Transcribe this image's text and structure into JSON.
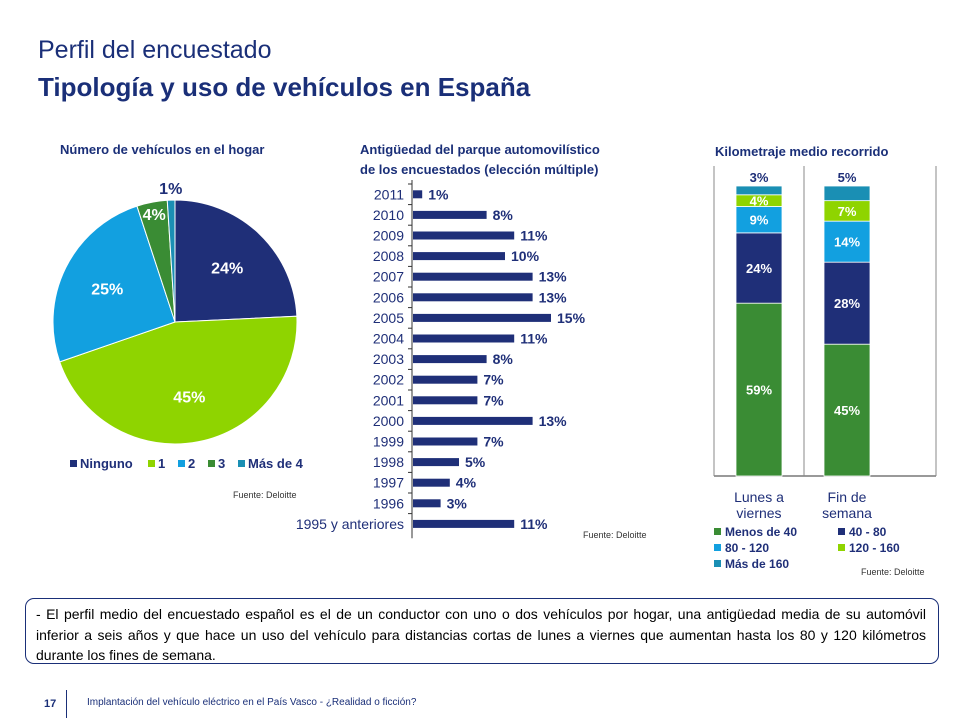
{
  "slide": {
    "title_line1": "Perfil del encuestado",
    "title_line2": "Tipología y uso de vehículos en España",
    "summary": "- El perfil medio del encuestado español es el de un conductor con uno o dos vehículos por hogar, una antigüedad media de su automóvil inferior a seis años y que hace un uso del vehículo para distancias cortas de lunes a viernes que aumentan hasta los 80 y 120 kilómetros durante los fines de semana.",
    "page_number": "17",
    "footer_text": "Implantación del vehículo eléctrico en el País Vasco - ¿Realidad o ficción?"
  },
  "chart_data": [
    {
      "type": "pie",
      "title": "Número de vehículos en el hogar",
      "source": "Fuente: Deloitte",
      "labels": [
        "Ninguno",
        "1",
        "2",
        "3",
        "Más de 4"
      ],
      "values": [
        24,
        45,
        25,
        4,
        1
      ],
      "value_labels": [
        "24%",
        "45%",
        "25%",
        "4%",
        "1%"
      ],
      "colors": [
        "#1f2f78",
        "#8fd400",
        "#12a0e0",
        "#3a8c34",
        "#1a8fb4"
      ],
      "legend_position": "bottom"
    },
    {
      "type": "bar",
      "orientation": "horizontal",
      "title": "Antigüedad del parque automovilístico de los encuestados (elección múltiple)",
      "title_lines": [
        "Antigüedad del parque automovilístico",
        "de los encuestados (elección múltiple)"
      ],
      "source": "Fuente: Deloitte",
      "categories": [
        "2011",
        "2010",
        "2009",
        "2008",
        "2007",
        "2006",
        "2005",
        "2004",
        "2003",
        "2002",
        "2001",
        "2000",
        "1999",
        "1998",
        "1997",
        "1996",
        "1995 y anteriores"
      ],
      "values": [
        1,
        8,
        11,
        10,
        13,
        13,
        15,
        11,
        8,
        7,
        7,
        13,
        7,
        5,
        4,
        3,
        11
      ],
      "value_labels": [
        "1%",
        "8%",
        "11%",
        "10%",
        "13%",
        "13%",
        "15%",
        "11%",
        "8%",
        "7%",
        "7%",
        "13%",
        "7%",
        "5%",
        "4%",
        "3%",
        "11%"
      ],
      "color": "#1f2f78"
    },
    {
      "type": "bar",
      "stacked": true,
      "title": "Kilometraje medio recorrido",
      "source": "Fuente: Deloitte",
      "categories": [
        "Lunes a viernes",
        "Fin de semana"
      ],
      "category_lines": [
        [
          "Lunes a",
          "viernes"
        ],
        [
          "Fin de",
          "semana"
        ]
      ],
      "series": [
        {
          "name": "Menos de 40",
          "values": [
            59,
            45
          ],
          "labels": [
            "59%",
            "45%"
          ],
          "color": "#3a8c34"
        },
        {
          "name": "40 - 80",
          "values": [
            24,
            28
          ],
          "labels": [
            "24%",
            "28%"
          ],
          "color": "#1f2f78"
        },
        {
          "name": "80 - 120",
          "values": [
            9,
            14
          ],
          "labels": [
            "9%",
            "14%"
          ],
          "color": "#12a0e0"
        },
        {
          "name": "120 - 160",
          "values": [
            4,
            7
          ],
          "labels": [
            "4%",
            "7%"
          ],
          "color": "#8fd400"
        },
        {
          "name": "Más de 160",
          "values": [
            3,
            5
          ],
          "labels": [
            "3%",
            "5%"
          ],
          "color": "#1a8fb4"
        }
      ],
      "legend_position": "bottom"
    }
  ]
}
